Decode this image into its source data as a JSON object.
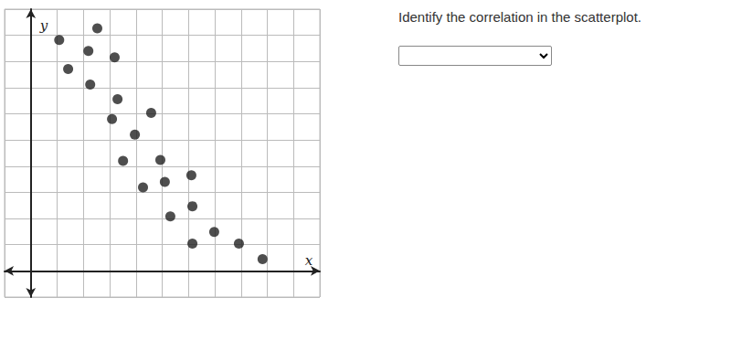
{
  "chart_data": {
    "type": "scatter",
    "x": [
      1.08,
      2.53,
      1.42,
      2.19,
      3.19,
      2.26,
      3.3,
      3.09,
      4.58,
      3.96,
      3.51,
      4.93,
      4.27,
      5.1,
      6.11,
      5.31,
      6.15,
      6.15,
      6.98,
      7.92,
      8.82
    ],
    "values": [
      8.82,
      9.27,
      7.71,
      8.4,
      8.16,
      7.12,
      6.56,
      5.8,
      6.04,
      5.21,
      4.2,
      4.24,
      3.19,
      3.4,
      3.65,
      2.08,
      2.47,
      1.04,
      1.49,
      1.04,
      0.45
    ],
    "color": "#222222",
    "xlabel": "x",
    "ylabel": "y",
    "xlim": [
      -1,
      11
    ],
    "ylim": [
      -1,
      10
    ],
    "xticks": [
      -1,
      0,
      1,
      2,
      3,
      4,
      5,
      6,
      7,
      8,
      9,
      10,
      11
    ],
    "yticks": [
      -1,
      0,
      1,
      2,
      3,
      4,
      5,
      6,
      7,
      8,
      9,
      10
    ],
    "grid": true,
    "tick_labels": false
  },
  "question": {
    "prompt": "Identify the correlation in the scatterplot."
  }
}
